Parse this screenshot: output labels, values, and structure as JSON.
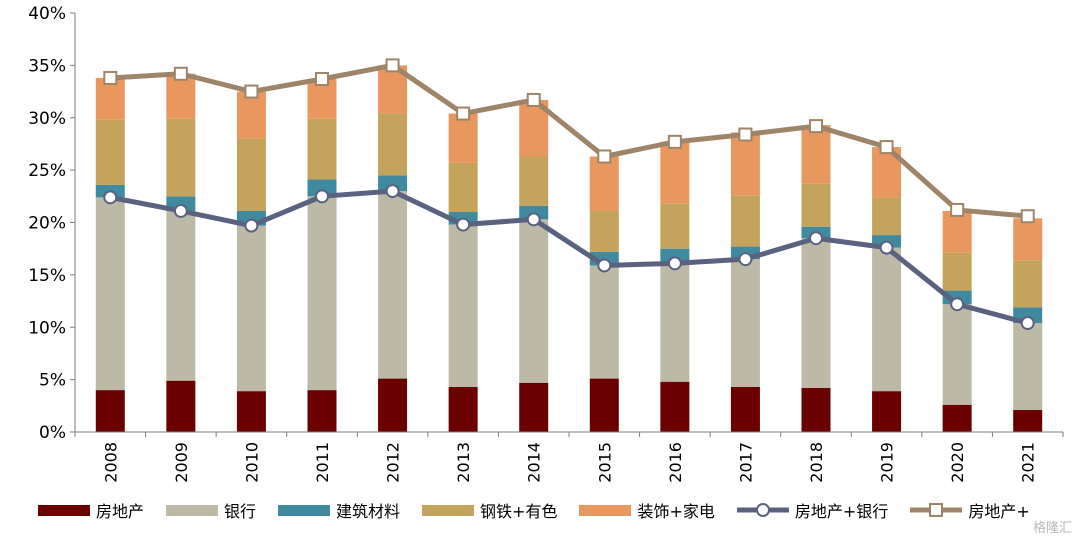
{
  "chart_data": {
    "type": "bar",
    "stacked": true,
    "categories": [
      "2008",
      "2009",
      "2010",
      "2011",
      "2012",
      "2013",
      "2014",
      "2015",
      "2016",
      "2017",
      "2018",
      "2019",
      "2020",
      "2021"
    ],
    "ylim": [
      0,
      40
    ],
    "yticks": [
      "0%",
      "5%",
      "10%",
      "15%",
      "20%",
      "25%",
      "30%",
      "35%",
      "40%"
    ],
    "series": [
      {
        "name": "房地产",
        "kind": "bar",
        "color": "#6b0000",
        "values": [
          4.0,
          4.9,
          3.9,
          4.0,
          5.1,
          4.3,
          4.7,
          5.1,
          4.8,
          4.3,
          4.2,
          3.9,
          2.6,
          2.1
        ]
      },
      {
        "name": "银行",
        "kind": "bar",
        "color": "#bcbaa6",
        "values": [
          18.4,
          16.2,
          15.8,
          18.5,
          17.9,
          15.5,
          15.6,
          10.8,
          11.3,
          12.2,
          14.3,
          13.7,
          9.6,
          8.3
        ]
      },
      {
        "name": "建筑材料",
        "kind": "bar",
        "color": "#3f8a9e",
        "values": [
          1.2,
          1.4,
          1.4,
          1.6,
          1.5,
          1.2,
          1.3,
          1.3,
          1.4,
          1.2,
          1.1,
          1.2,
          1.3,
          1.5
        ]
      },
      {
        "name": "钢铁+有色",
        "kind": "bar",
        "color": "#c4a45c",
        "values": [
          6.2,
          7.4,
          6.9,
          5.8,
          5.9,
          4.7,
          4.7,
          3.9,
          4.3,
          4.9,
          4.1,
          3.6,
          3.6,
          4.5
        ]
      },
      {
        "name": "装饰+家电",
        "kind": "bar",
        "color": "#e8985f",
        "values": [
          4.0,
          4.3,
          4.5,
          3.8,
          4.6,
          4.7,
          5.4,
          5.2,
          5.9,
          6.0,
          5.6,
          4.8,
          4.0,
          4.0
        ]
      },
      {
        "name": "房地产+银行",
        "kind": "line",
        "color": "#5b6280",
        "marker": "circle",
        "values": [
          22.4,
          21.1,
          19.7,
          22.5,
          23.0,
          19.8,
          20.3,
          15.9,
          16.1,
          16.5,
          18.5,
          17.6,
          12.2,
          10.4
        ]
      },
      {
        "name": "房地产+",
        "kind": "line",
        "color": "#9e8468",
        "marker": "square",
        "values": [
          33.8,
          34.2,
          32.5,
          33.7,
          35.0,
          30.4,
          31.7,
          26.3,
          27.7,
          28.4,
          29.2,
          27.2,
          21.2,
          20.6
        ]
      }
    ],
    "legend_position": "bottom",
    "grid": false
  },
  "watermark": "格隆汇"
}
